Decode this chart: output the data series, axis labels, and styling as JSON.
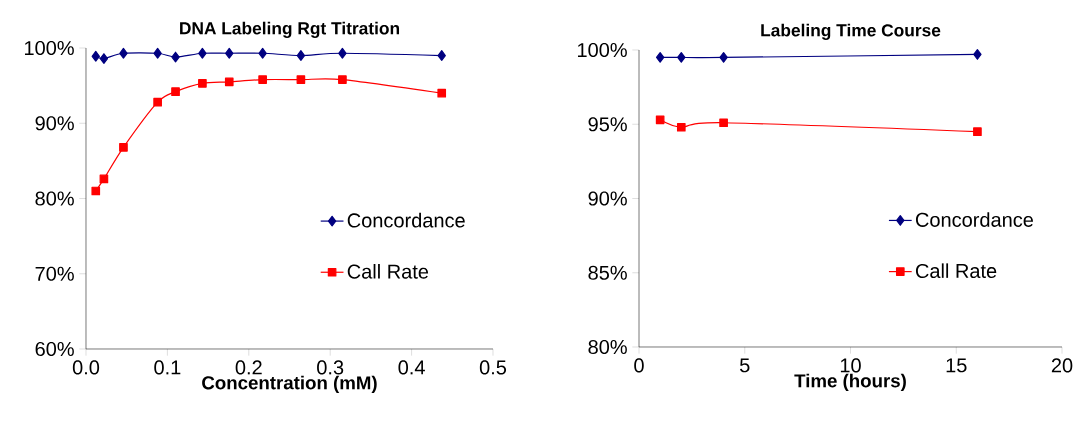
{
  "chart_data": [
    {
      "type": "line",
      "title": "DNA Labeling Rgt Titration",
      "xlabel": "Concentration (mM)",
      "xlim": [
        0,
        0.5
      ],
      "xticks": [
        {
          "value": 0,
          "label": "0.0"
        },
        0.1,
        0.2,
        0.3,
        0.4,
        0.5
      ],
      "ylim": [
        60,
        100
      ],
      "yticks": [
        {
          "value": 60,
          "label": "60%"
        },
        {
          "value": 70,
          "label": "70%"
        },
        {
          "value": 80,
          "label": "80%"
        },
        {
          "value": 90,
          "label": "90%"
        },
        {
          "value": 100,
          "label": "100%"
        }
      ],
      "legend": "right",
      "line_style": "solid",
      "series": [
        {
          "name": "Concordance",
          "color": "#000080",
          "marker": "diamond",
          "x": [
            0.012,
            0.022,
            0.046,
            0.088,
            0.11,
            0.143,
            0.176,
            0.217,
            0.264,
            0.315,
            0.437
          ],
          "values": [
            98.9,
            98.6,
            99.3,
            99.3,
            98.8,
            99.3,
            99.3,
            99.3,
            99.0,
            99.3,
            99.0
          ]
        },
        {
          "name": "Call Rate",
          "color": "#ff0000",
          "marker": "square",
          "x": [
            0.012,
            0.022,
            0.046,
            0.088,
            0.11,
            0.143,
            0.176,
            0.217,
            0.264,
            0.315,
            0.437
          ],
          "values": [
            81.0,
            82.6,
            86.8,
            92.8,
            94.2,
            95.3,
            95.5,
            95.8,
            95.8,
            95.8,
            94.0
          ]
        }
      ]
    },
    {
      "type": "line",
      "title": "Labeling Time Course",
      "xlabel": "Time (hours)",
      "xlim": [
        0,
        20
      ],
      "xticks": [
        0,
        5,
        10,
        15,
        20
      ],
      "ylim": [
        80,
        100
      ],
      "yticks": [
        {
          "value": 80,
          "label": "80%"
        },
        {
          "value": 85,
          "label": "85%"
        },
        {
          "value": 90,
          "label": "90%"
        },
        {
          "value": 95,
          "label": "95%"
        },
        {
          "value": 100,
          "label": "100%"
        }
      ],
      "legend": "right",
      "line_style": "solid",
      "series": [
        {
          "name": "Concordance",
          "color": "#000080",
          "marker": "diamond",
          "x": [
            1,
            2,
            4,
            16
          ],
          "values": [
            99.5,
            99.5,
            99.5,
            99.7
          ]
        },
        {
          "name": "Call Rate",
          "color": "#ff0000",
          "marker": "square",
          "x": [
            1,
            2,
            4,
            16
          ],
          "values": [
            95.3,
            94.8,
            95.1,
            94.5
          ]
        }
      ]
    }
  ]
}
